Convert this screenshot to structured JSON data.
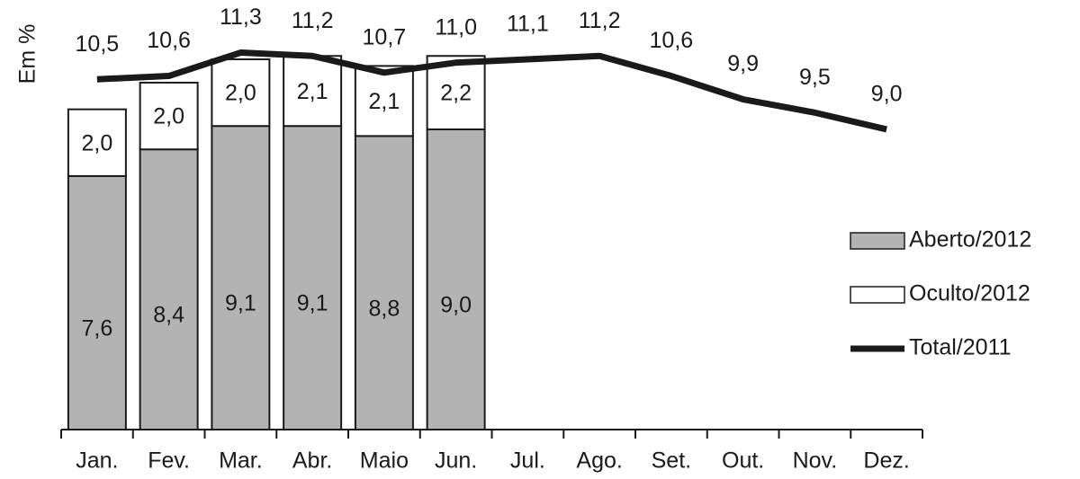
{
  "chart_data": {
    "type": "bar",
    "y_label": "Em %",
    "categories": [
      "Jan.",
      "Fev.",
      "Mar.",
      "Abr.",
      "Maio",
      "Jun.",
      "Jul.",
      "Ago.",
      "Set.",
      "Out.",
      "Nov.",
      "Dez."
    ],
    "ylim": [
      0,
      12.5
    ],
    "stacked": true,
    "legend": "right",
    "series": [
      {
        "name": "Aberto/2012",
        "type": "bar",
        "color": "#b3b3b3",
        "values": [
          7.6,
          8.4,
          9.1,
          9.1,
          8.8,
          9.0,
          null,
          null,
          null,
          null,
          null,
          null
        ],
        "value_labels": [
          "7,6",
          "8,4",
          "9,1",
          "9,1",
          "8,8",
          "9,0",
          null,
          null,
          null,
          null,
          null,
          null
        ]
      },
      {
        "name": "Oculto/2012",
        "type": "bar",
        "color": "#ffffff",
        "values": [
          2.0,
          2.0,
          2.0,
          2.1,
          2.1,
          2.2,
          null,
          null,
          null,
          null,
          null,
          null
        ],
        "value_labels": [
          "2,0",
          "2,0",
          "2,0",
          "2,1",
          "2,1",
          "2,2",
          null,
          null,
          null,
          null,
          null,
          null
        ]
      },
      {
        "name": "Total/2011",
        "type": "line",
        "color": "#1a1a1a",
        "values": [
          10.5,
          10.6,
          11.3,
          11.2,
          10.7,
          11.0,
          11.1,
          11.2,
          10.6,
          9.9,
          9.5,
          9.0
        ],
        "value_labels": [
          "10,5",
          "10,6",
          "11,3",
          "11,2",
          "10,7",
          "11,0",
          "11,1",
          "11,2",
          "10,6",
          "9,9",
          "9,5",
          "9,0"
        ]
      }
    ]
  }
}
